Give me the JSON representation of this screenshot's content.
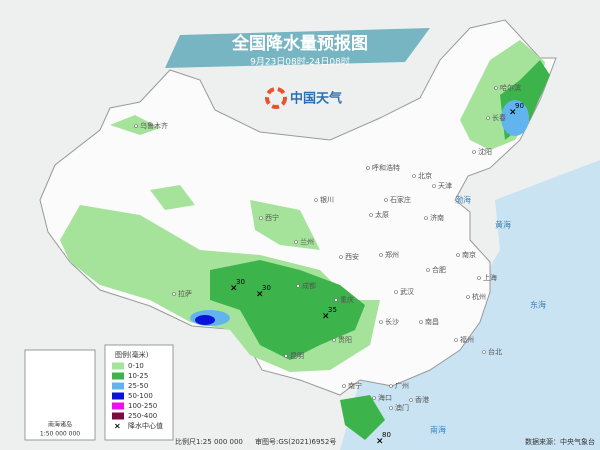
{
  "title": "全国降水量预报图",
  "subtitle": "9月23日08时-24日08时",
  "logo": "中国天气",
  "legend": {
    "title": "图例(毫米)",
    "items": [
      {
        "label": "0-10",
        "color": "#a5e39a"
      },
      {
        "label": "10-25",
        "color": "#3cb44b"
      },
      {
        "label": "25-50",
        "color": "#62b4ee"
      },
      {
        "label": "50-100",
        "color": "#0a14d8"
      },
      {
        "label": "100-250",
        "color": "#ee10ee"
      },
      {
        "label": "250-400",
        "color": "#7d0a3c"
      }
    ],
    "center_label": "降水中心值"
  },
  "centers": [
    {
      "value": 90
    },
    {
      "value": 30
    },
    {
      "value": 30
    },
    {
      "value": 35
    },
    {
      "value": 80
    }
  ],
  "cities": [
    "乌鲁木齐",
    "哈尔滨",
    "长春",
    "沈阳",
    "呼和浩特",
    "北京",
    "天津",
    "石家庄",
    "太原",
    "银川",
    "西宁",
    "兰州",
    "济南",
    "郑州",
    "西安",
    "南京",
    "合肥",
    "上海",
    "武汉",
    "杭州",
    "成都",
    "重庆",
    "长沙",
    "南昌",
    "贵阳",
    "昆明",
    "拉萨",
    "福州",
    "台北",
    "广州",
    "南宁",
    "海口",
    "香港",
    "澳门"
  ],
  "seas": [
    "渤海",
    "黄海",
    "东海",
    "南海"
  ],
  "inset": {
    "label": "南海诸岛",
    "scale": "1:50 000 000"
  },
  "footer": {
    "scale": "比例尺1:25 000 000",
    "approval": "审图号:GS(2021)6952号",
    "source": "数据来源：中央气象台"
  }
}
